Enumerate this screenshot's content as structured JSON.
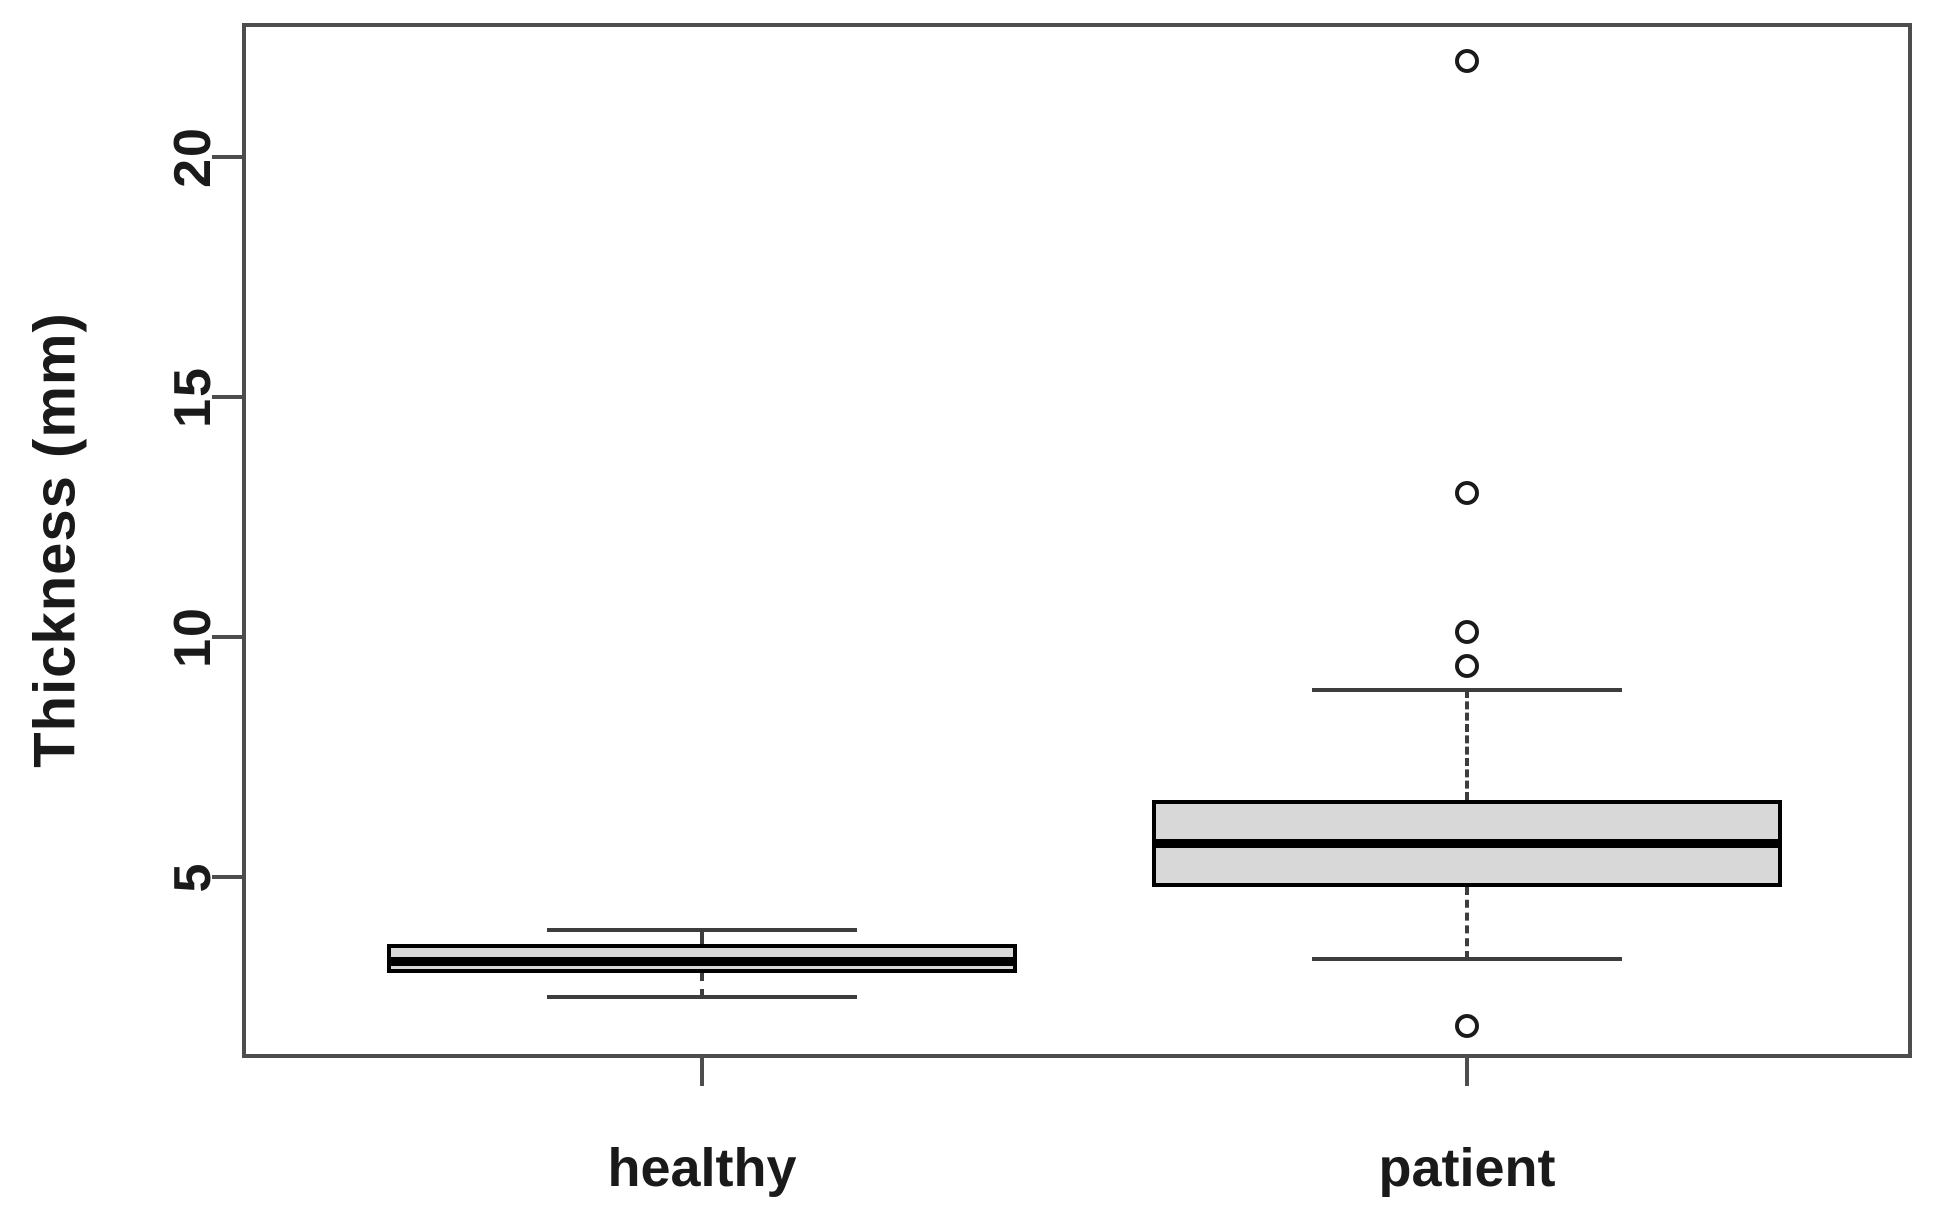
{
  "chart_data": {
    "type": "boxplot",
    "title": "",
    "xlabel": "",
    "ylabel": "Thickness (mm)",
    "categories": [
      "healthy",
      "patient"
    ],
    "yticks": [
      5,
      10,
      15,
      20
    ],
    "ylim": [
      1.2,
      22.8
    ],
    "grid": false,
    "legend": "none",
    "series": [
      {
        "name": "healthy",
        "lower_whisker": 2.5,
        "q1": 3.0,
        "median": 3.25,
        "q3": 3.6,
        "upper_whisker": 3.9,
        "outliers": []
      },
      {
        "name": "patient",
        "lower_whisker": 3.3,
        "q1": 4.8,
        "median": 5.7,
        "q3": 6.6,
        "upper_whisker": 8.9,
        "outliers": [
          22.0,
          13.0,
          10.1,
          9.4,
          1.9
        ]
      }
    ],
    "colors": {
      "box_fill": "#d8d8d8",
      "box_border": "#000000",
      "median": "#000000",
      "whisker": "#3d3d3d",
      "axis": "#4d4d4d",
      "text": "#1a1a1a",
      "background": "#ffffff"
    }
  }
}
